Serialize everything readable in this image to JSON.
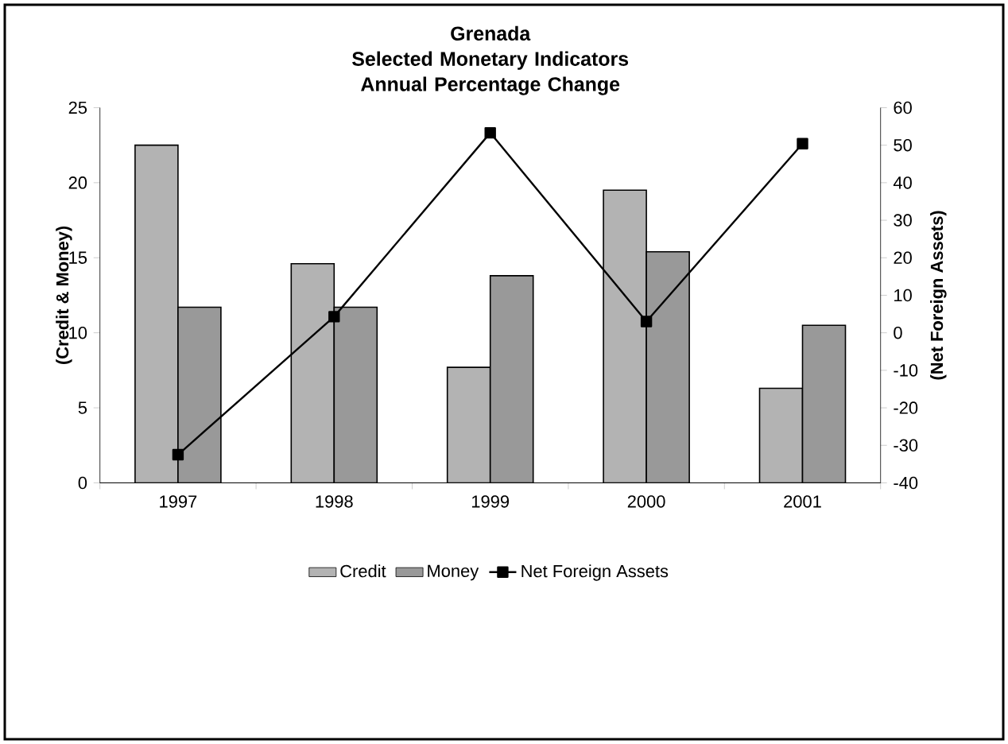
{
  "chart_data": {
    "type": "bar",
    "title": "Grenada",
    "subtitle": "Selected Monetary Indicators Annual Percentage Change",
    "categories": [
      "1997",
      "1998",
      "1999",
      "2000",
      "2001"
    ],
    "series": [
      {
        "name": "Credit",
        "color": "#b3b3b3",
        "values": [
          22.5,
          14.6,
          7.7,
          19.5,
          6.3
        ]
      },
      {
        "name": "Money",
        "color": "#999999",
        "values": [
          11.7,
          11.7,
          13.8,
          15.4,
          10.5
        ]
      },
      {
        "name": "Net Foreign Assets",
        "type": "line",
        "axis": "y2",
        "color": "#000000",
        "marker": "square",
        "values": [
          -32.5,
          4.3,
          53.3,
          3.0,
          50.4
        ]
      }
    ],
    "ylabel": "(Credit & Money)",
    "y2label": "(Net Foreign Assets)",
    "ylim": [
      0,
      25
    ],
    "yticks": [
      0,
      5,
      10,
      15,
      20,
      25
    ],
    "y2lim": [
      -40,
      60
    ],
    "y2ticks": [
      -40,
      -30,
      -20,
      -10,
      0,
      10,
      20,
      30,
      40,
      50,
      60
    ],
    "legend": "bottom"
  }
}
